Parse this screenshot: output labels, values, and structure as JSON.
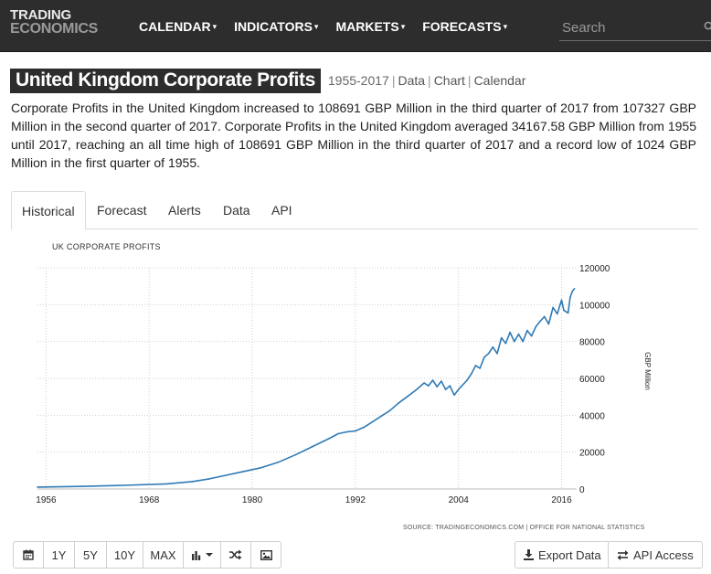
{
  "logo": {
    "line1": "TRADING",
    "line2": "ECONOMICS"
  },
  "nav": {
    "items": [
      {
        "label": "CALENDAR"
      },
      {
        "label": "INDICATORS"
      },
      {
        "label": "MARKETS"
      },
      {
        "label": "FORECASTS"
      }
    ],
    "caret": "▾",
    "search_placeholder": "Search"
  },
  "page": {
    "title": "United Kingdom Corporate Profits",
    "range": "1955-2017",
    "links": [
      "Data",
      "Chart",
      "Calendar"
    ],
    "description": "Corporate Profits in the United Kingdom increased to 108691 GBP Million in the third quarter of 2017 from 107327 GBP Million in the second quarter of 2017. Corporate Profits in the United Kingdom averaged 34167.58 GBP Million from 1955 until 2017, reaching an all time high of 108691 GBP Million in the third quarter of 2017 and a record low of 1024 GBP Million in the first quarter of 1955."
  },
  "tabs": [
    {
      "label": "Historical",
      "active": true
    },
    {
      "label": "Forecast"
    },
    {
      "label": "Alerts"
    },
    {
      "label": "Data"
    },
    {
      "label": "API"
    }
  ],
  "chart_data": {
    "type": "line",
    "title": "UK CORPORATE PROFITS",
    "ylabel": "GBP Million",
    "xlabel": "",
    "x_ticks": [
      "1956",
      "1968",
      "1980",
      "1992",
      "2004",
      "2016"
    ],
    "y_ticks": [
      "0",
      "20000",
      "40000",
      "60000",
      "80000",
      "100000",
      "120000"
    ],
    "xlim": [
      1955,
      2017.75
    ],
    "ylim": [
      0,
      120000
    ],
    "grid": true,
    "line_color": "#2f7ab5",
    "series": [
      {
        "x": [
          1955,
          1960,
          1965,
          1970,
          1973,
          1975,
          1977,
          1979,
          1981,
          1983,
          1985,
          1987,
          1989,
          1990,
          1991,
          1992,
          1993,
          1994,
          1995,
          1996,
          1997,
          1998,
          1999,
          2000,
          2000.5,
          2001,
          2001.5,
          2002,
          2002.5,
          2003,
          2003.5,
          2004,
          2005,
          2005.5,
          2006,
          2006.5,
          2007,
          2007.5,
          2008,
          2008.5,
          2009,
          2009.5,
          2010,
          2010.5,
          2011,
          2011.5,
          2012,
          2012.5,
          2013,
          2013.5,
          2014,
          2014.5,
          2015,
          2015.5,
          2016,
          2016.25,
          2016.75,
          2017,
          2017.25,
          2017.5
        ],
        "values": [
          1024,
          1400,
          2000,
          2800,
          4000,
          5500,
          7500,
          9500,
          11500,
          14500,
          18500,
          23000,
          27500,
          30000,
          31000,
          31500,
          33500,
          36500,
          39500,
          42500,
          46500,
          50000,
          53500,
          57500,
          56000,
          59000,
          55500,
          58500,
          54000,
          56000,
          51000,
          54000,
          59000,
          62500,
          67000,
          65500,
          71500,
          73500,
          77000,
          73500,
          82000,
          79000,
          85000,
          80000,
          84000,
          80000,
          86000,
          83000,
          88000,
          91000,
          93500,
          89500,
          98500,
          95000,
          102500,
          97000,
          95500,
          104000,
          107327,
          108691
        ]
      }
    ],
    "source": "SOURCE: TRADINGECONOMICS.COM | OFFICE FOR NATIONAL STATISTICS"
  },
  "toolbar": {
    "buttons": [
      {
        "name": "calendar-range-button",
        "icon": "calendar-icon",
        "label": ""
      },
      {
        "name": "range-1y-button",
        "label": "1Y"
      },
      {
        "name": "range-5y-button",
        "label": "5Y"
      },
      {
        "name": "range-10y-button",
        "label": "10Y"
      },
      {
        "name": "range-max-button",
        "label": "MAX"
      },
      {
        "name": "chart-type-button",
        "icon": "bar-chart-icon",
        "label": ""
      },
      {
        "name": "compare-button",
        "icon": "shuffle-icon",
        "label": ""
      },
      {
        "name": "image-export-button",
        "icon": "image-icon",
        "label": ""
      }
    ],
    "export_label": "Export Data",
    "api_label": "API Access"
  }
}
